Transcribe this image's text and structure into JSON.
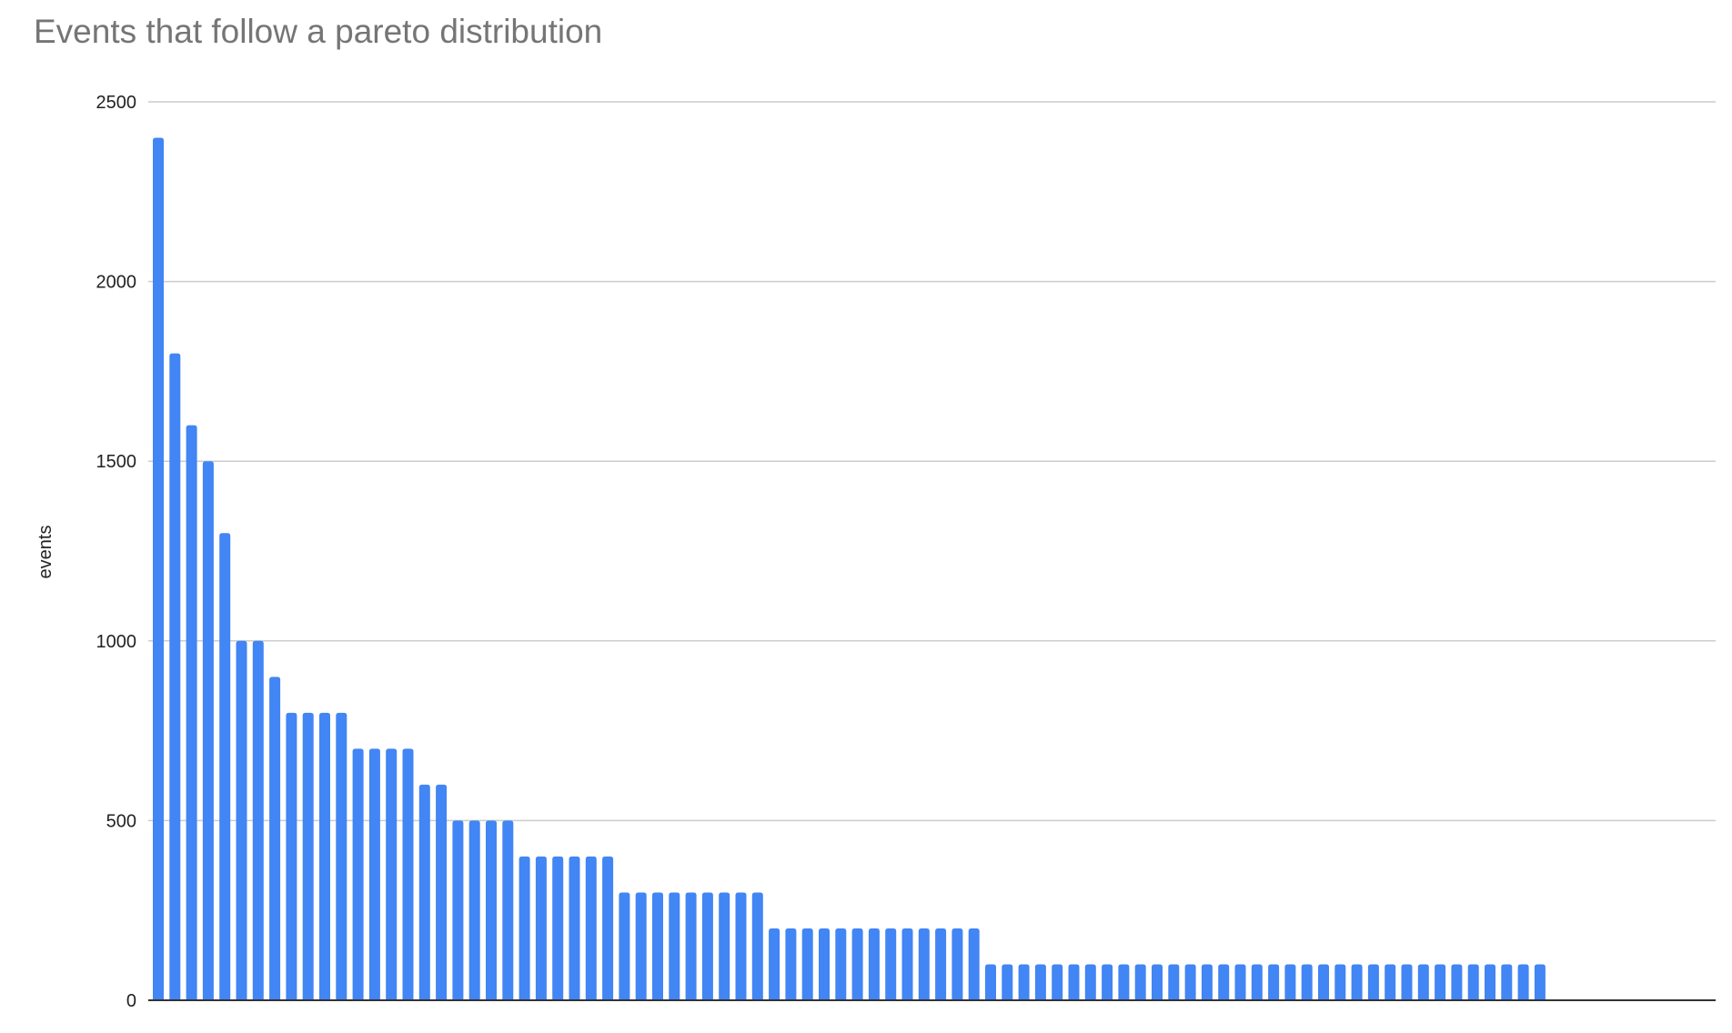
{
  "chart_data": {
    "type": "bar",
    "title": "Events that follow a pareto distribution",
    "xlabel": "",
    "ylabel": "events",
    "ylim": [
      0,
      2500
    ],
    "yticks": [
      "0",
      "500",
      "1000",
      "1500",
      "2000",
      "2500"
    ],
    "grid": true,
    "legend": "none",
    "bar_color": "#4285f4",
    "values": [
      2400,
      1800,
      1600,
      1500,
      1300,
      1000,
      1000,
      900,
      800,
      800,
      800,
      800,
      700,
      700,
      700,
      700,
      600,
      600,
      500,
      500,
      500,
      500,
      400,
      400,
      400,
      400,
      400,
      400,
      300,
      300,
      300,
      300,
      300,
      300,
      300,
      300,
      300,
      200,
      200,
      200,
      200,
      200,
      200,
      200,
      200,
      200,
      200,
      200,
      200,
      200,
      100,
      100,
      100,
      100,
      100,
      100,
      100,
      100,
      100,
      100,
      100,
      100,
      100,
      100,
      100,
      100,
      100,
      100,
      100,
      100,
      100,
      100,
      100,
      100,
      100,
      100,
      100,
      100,
      100,
      100,
      100,
      100,
      100,
      100
    ]
  }
}
